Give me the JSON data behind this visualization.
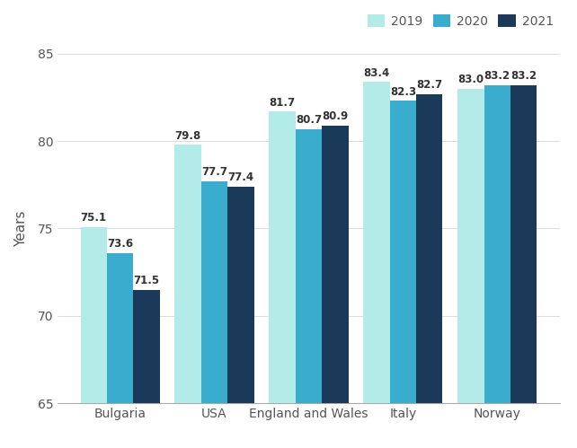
{
  "categories": [
    "Bulgaria",
    "USA",
    "England and Wales",
    "Italy",
    "Norway"
  ],
  "years": [
    "2019",
    "2020",
    "2021"
  ],
  "values": {
    "2019": [
      75.1,
      79.8,
      81.7,
      83.4,
      83.0
    ],
    "2020": [
      73.6,
      77.7,
      80.7,
      82.3,
      83.2
    ],
    "2021": [
      71.5,
      77.4,
      80.9,
      82.7,
      83.2
    ]
  },
  "colors": {
    "2019": "#b2ebe8",
    "2020": "#3aadce",
    "2021": "#1b3a5a"
  },
  "ylabel": "Years",
  "ylim": [
    65,
    85
  ],
  "yticks": [
    65,
    70,
    75,
    80,
    85
  ],
  "bar_width": 0.28,
  "legend_labels": [
    "2019",
    "2020",
    "2021"
  ],
  "background_color": "#ffffff",
  "label_fontsize": 8.5,
  "axis_label_fontsize": 11,
  "tick_fontsize": 10
}
